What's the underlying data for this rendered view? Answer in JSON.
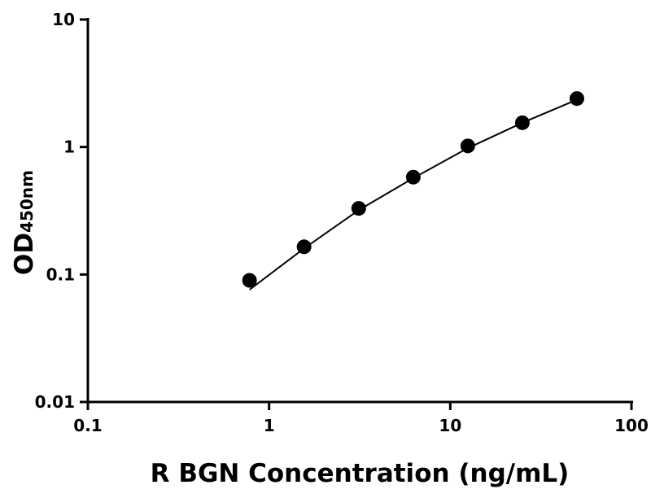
{
  "chart_data": {
    "type": "scatter",
    "x_label": "R BGN Concentration (ng/mL)",
    "y_label": "OD",
    "y_label_subscript": "450nm",
    "x": [
      0.78,
      1.56,
      3.125,
      6.25,
      12.5,
      25,
      50
    ],
    "values": [
      0.09,
      0.165,
      0.33,
      0.58,
      1.02,
      1.55,
      2.4
    ],
    "color": "#000000",
    "curve": {
      "x": [
        0.78,
        1.56,
        3.125,
        6.25,
        12.5,
        25,
        50
      ],
      "y": [
        0.076,
        0.16,
        0.32,
        0.57,
        0.98,
        1.55,
        2.35
      ]
    },
    "log_x": true,
    "log_y": true,
    "xlim": [
      0.1,
      100
    ],
    "xticks": [
      0.1,
      1,
      10,
      100
    ],
    "ylim": [
      0.01,
      10
    ],
    "yticks": [
      0.01,
      0.1,
      1,
      10
    ]
  }
}
